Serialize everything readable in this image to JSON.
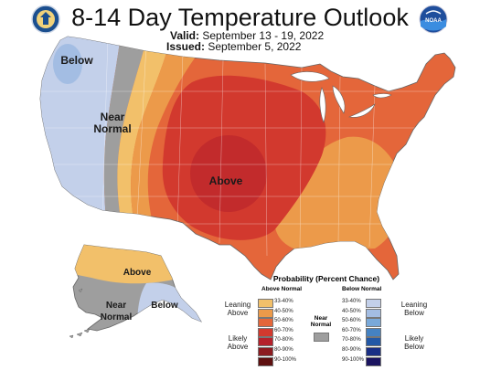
{
  "header": {
    "title": "8-14 Day Temperature Outlook",
    "valid_label": "Valid:",
    "valid_dates": "September 13 - 19, 2022",
    "issued_label": "Issued:",
    "issued_date": "September 5, 2022"
  },
  "logos": {
    "left": "Department of Commerce seal",
    "right": "NOAA logo",
    "right_text": "NOAA"
  },
  "map_labels": {
    "below_nw": "Below",
    "near_normal_west": "Near Normal",
    "above_central": "Above",
    "alaska_above": "Above",
    "alaska_near_normal": "Near Normal",
    "alaska_below": "Below"
  },
  "legend": {
    "title": "Probability (Percent Chance)",
    "above_header": "Above Normal",
    "below_header": "Below Normal",
    "near_normal": "Near Normal",
    "leaning_above": "Leaning Above",
    "likely_above": "Likely Above",
    "leaning_below": "Leaning Below",
    "likely_below": "Likely Below",
    "above_bins": [
      {
        "label": "33-40%",
        "color": "#f2c06a"
      },
      {
        "label": "40-50%",
        "color": "#ec9a4a"
      },
      {
        "label": "50-60%",
        "color": "#e4663a"
      },
      {
        "label": "60-70%",
        "color": "#d2392e"
      },
      {
        "label": "70-80%",
        "color": "#b5212b"
      },
      {
        "label": "80-90%",
        "color": "#8c1b20"
      },
      {
        "label": "90-100%",
        "color": "#5e1010"
      }
    ],
    "below_bins": [
      {
        "label": "33-40%",
        "color": "#c3d0ea"
      },
      {
        "label": "40-50%",
        "color": "#a3bde3"
      },
      {
        "label": "50-60%",
        "color": "#79a9da"
      },
      {
        "label": "60-70%",
        "color": "#4582c2"
      },
      {
        "label": "70-80%",
        "color": "#2358a6"
      },
      {
        "label": "80-90%",
        "color": "#1a2f85"
      },
      {
        "label": "90-100%",
        "color": "#1b1460"
      }
    ],
    "near_normal_color": "#9e9e9e"
  }
}
